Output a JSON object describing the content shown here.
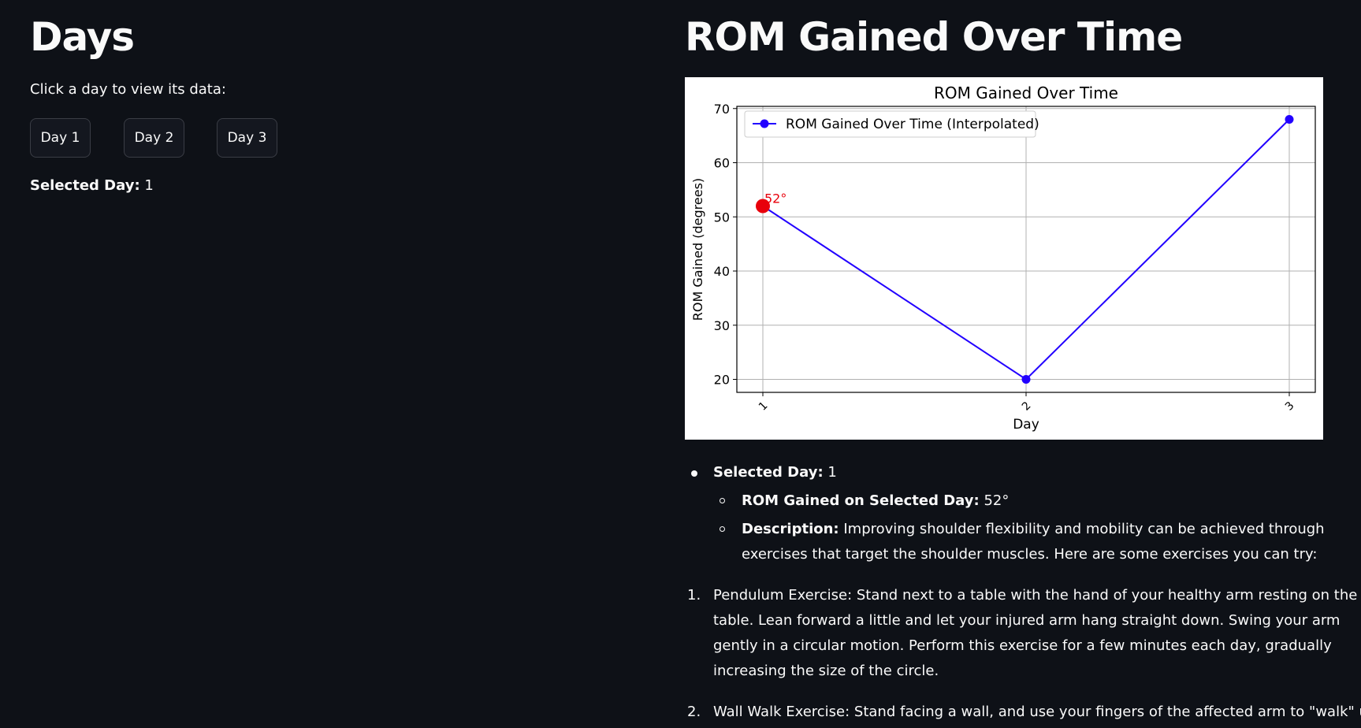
{
  "left": {
    "title": "Days",
    "prompt": "Click a day to view its data:",
    "buttons": [
      "Day 1",
      "Day 2",
      "Day 3"
    ],
    "selected_label": "Selected Day:",
    "selected_value": "1"
  },
  "right": {
    "title": "ROM Gained Over Time",
    "info": {
      "selected_label": "Selected Day:",
      "selected_value": "1",
      "rom_label": "ROM Gained on Selected Day:",
      "rom_value": "52°",
      "desc_label": "Description:",
      "desc_line1": "Improving shoulder flexibility and mobility can be achieved through",
      "desc_line2": "exercises that target the shoulder muscles. Here are some exercises you can try:",
      "ex1_num": "1.",
      "ex1_lines": [
        "Pendulum Exercise: Stand next to a table with the hand of your healthy arm resting on the",
        "table. Lean forward a little and let your injured arm hang straight down. Swing your arm",
        "gently in a circular motion. Perform this exercise for a few minutes each day, gradually",
        "increasing the size of the circle."
      ],
      "ex2_num": "2.",
      "ex2_line1": "Wall Walk Exercise: Stand facing a wall, and use your fingers of the affected arm to \"walk\" up"
    }
  },
  "chart_data": {
    "type": "line",
    "title": "ROM Gained Over Time",
    "xlabel": "Day",
    "ylabel": "ROM Gained (degrees)",
    "categories": [
      "1",
      "2",
      "3"
    ],
    "series": [
      {
        "name": "ROM Gained Over Time (Interpolated)",
        "values": [
          52,
          20,
          68
        ],
        "color": "#2200ff"
      }
    ],
    "highlight": {
      "category": "1",
      "value": 52,
      "label": "52°",
      "color": "#e8000b"
    },
    "yticks": [
      20,
      30,
      40,
      50,
      60,
      70
    ],
    "ylim": [
      17.6,
      70.4
    ],
    "grid": true,
    "legend": "top-left"
  }
}
